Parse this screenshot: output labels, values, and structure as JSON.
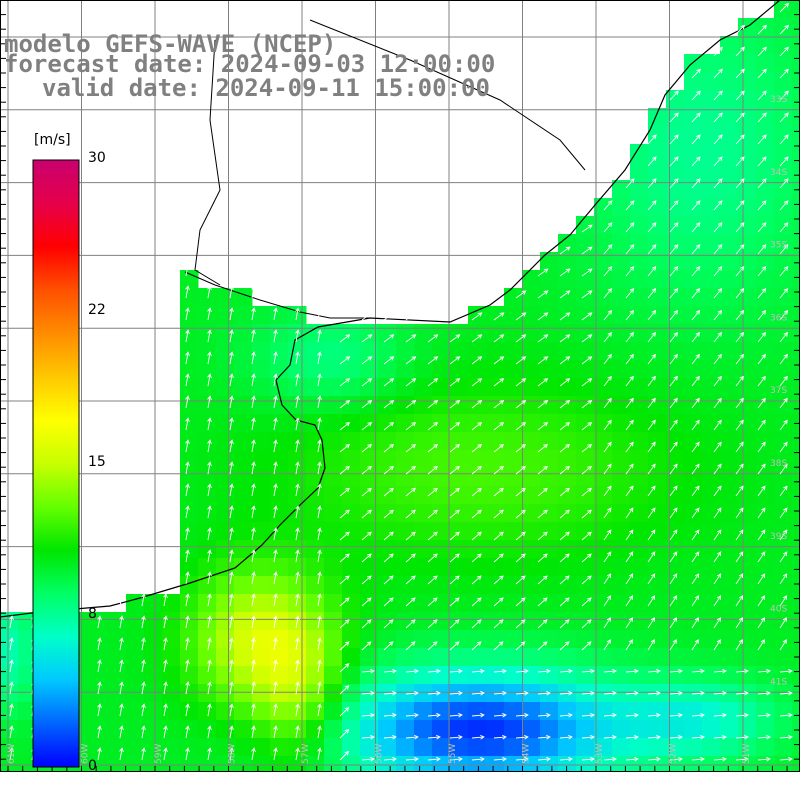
{
  "header": {
    "line1": "modelo GEFS-WAVE (NCEP)",
    "line2": "forecast date: 2024-09-03 12:00:00",
    "line3": "valid date: 2024-09-11 15:00:00"
  },
  "colorbar": {
    "unit": "[m/s]",
    "ticks": [
      "30",
      "22",
      "15",
      "8",
      "0"
    ],
    "tick_values": [
      30,
      22,
      15,
      8,
      0
    ],
    "range": [
      0,
      30
    ],
    "colors": [
      "#0000ff",
      "#0064ff",
      "#00c8ff",
      "#00ffc8",
      "#00ff64",
      "#00e600",
      "#64ff00",
      "#c8ff00",
      "#ffff00",
      "#ffc800",
      "#ff8c00",
      "#ff5000",
      "#ff0000",
      "#e6004b",
      "#c8006e"
    ]
  },
  "map": {
    "lat_labels": [
      "33S",
      "34S",
      "35S",
      "36S",
      "37S",
      "38S",
      "39S",
      "40S",
      "41S"
    ],
    "lon_labels": [
      "61W",
      "60W",
      "59W",
      "58W",
      "57W",
      "56W",
      "55W",
      "54W",
      "53W",
      "52W",
      "51W"
    ],
    "land_color": "#ffffff",
    "grid_color": "#808080",
    "arrow_color": "#ffffff"
  }
}
